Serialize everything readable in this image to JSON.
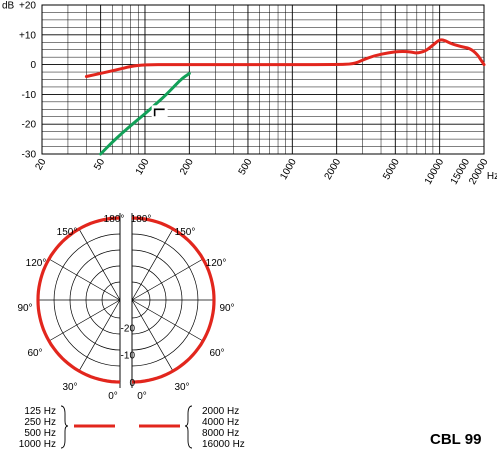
{
  "chart_data": [
    {
      "type": "line",
      "title": "",
      "xlabel": "Hz",
      "ylabel": "dB",
      "x_scale": "log",
      "xlim": [
        20,
        20000
      ],
      "ylim": [
        -30,
        20
      ],
      "x_ticks": [
        "20",
        "50",
        "100",
        "200",
        "500",
        "1000",
        "2000",
        "5000",
        "10000",
        "15000",
        "20000"
      ],
      "y_ticks": [
        "+20",
        "+10",
        "0",
        "-10",
        "-20",
        "-30"
      ],
      "grid": true,
      "series": [
        {
          "color": "#e2261d",
          "x": [
            40,
            55,
            70,
            80,
            100,
            150,
            200,
            300,
            500,
            1000,
            2000,
            2600,
            3000,
            3600,
            4500,
            5500,
            6500,
            7000,
            8000,
            9000,
            10000,
            11000,
            12000,
            14000,
            16000,
            18000,
            20000
          ],
          "y": [
            -4,
            -2.5,
            -1.3,
            -0.6,
            0,
            0,
            0,
            0,
            0,
            0,
            0,
            0.2,
            1.5,
            3,
            4,
            4.5,
            4.2,
            3.8,
            4.5,
            6.5,
            8.5,
            8,
            7,
            6,
            5.5,
            3.5,
            0
          ]
        },
        {
          "color": "#12a058",
          "x": [
            50,
            60,
            70,
            80,
            100,
            120,
            140,
            160,
            180,
            200
          ],
          "y": [
            -30,
            -26,
            -23,
            -20.5,
            -16.5,
            -13,
            -10,
            -7,
            -4.5,
            -3
          ]
        }
      ],
      "filter_symbol_x": 120,
      "filter_symbol_y": -15
    },
    {
      "type": "polar",
      "angle_ticks": [
        "180°",
        "150°",
        "120°",
        "90°",
        "60°",
        "30°",
        "0°"
      ],
      "angle_ticks_right": [
        "180°",
        "150°",
        "120°",
        "90°",
        "60°",
        "30°",
        "0°"
      ],
      "radial_ticks": [
        "-20",
        "-10",
        "0"
      ],
      "rlim": [
        -30,
        0
      ],
      "pattern": "omnidirectional",
      "left_legend": [
        "125 Hz",
        "250 Hz",
        "500 Hz",
        "1000 Hz"
      ],
      "right_legend": [
        "2000 Hz",
        "4000 Hz",
        "8000 Hz",
        "16000 Hz"
      ],
      "series": [
        {
          "color": "#e2261d",
          "level_db": 0
        }
      ]
    }
  ],
  "model_label": "CBL 99"
}
